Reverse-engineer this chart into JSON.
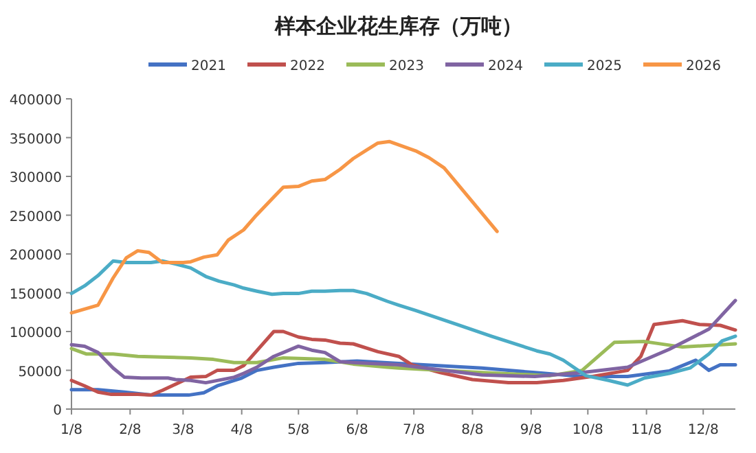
{
  "chart_data": {
    "type": "line",
    "title": "样本企业花生库存（万吨）",
    "legend": "top",
    "grid": false,
    "line_style": "solid",
    "marker": "none",
    "xlim": [
      "--01-08",
      "--12-25"
    ],
    "ylim": [
      0,
      400000
    ],
    "xticks": [
      {
        "value": "--01-08",
        "label": "1/8"
      },
      {
        "value": "--02-08",
        "label": "2/8"
      },
      {
        "value": "--03-08",
        "label": "3/8"
      },
      {
        "value": "--04-08",
        "label": "4/8"
      },
      {
        "value": "--05-08",
        "label": "5/8"
      },
      {
        "value": "--06-08",
        "label": "6/8"
      },
      {
        "value": "--07-08",
        "label": "7/8"
      },
      {
        "value": "--08-08",
        "label": "8/8"
      },
      {
        "value": "--09-08",
        "label": "9/8"
      },
      {
        "value": "--10-08",
        "label": "10/8"
      },
      {
        "value": "--11-08",
        "label": "11/8"
      },
      {
        "value": "--12-08",
        "label": "12/8"
      }
    ],
    "yticks": [
      0,
      50000,
      100000,
      150000,
      200000,
      250000,
      300000,
      350000,
      400000
    ],
    "series": [
      {
        "name": "2021",
        "color": "#4472c4",
        "x": [
          "--01-08",
          "--01-22",
          "--02-05",
          "--02-19",
          "--02-28",
          "--03-11",
          "--03-19",
          "--03-26",
          "--04-08",
          "--04-16",
          "--04-25",
          "--05-08",
          "--05-22",
          "--06-08",
          "--06-30",
          "--08-13",
          "--09-10",
          "--10-05",
          "--10-29",
          "--11-20",
          "--12-04",
          "--12-11",
          "--12-17",
          "--12-25"
        ],
        "values": [
          25000,
          25000,
          22000,
          18000,
          18000,
          18000,
          21000,
          30000,
          40000,
          50000,
          54000,
          59000,
          60000,
          62000,
          59000,
          53000,
          47000,
          42000,
          42000,
          49000,
          63000,
          50000,
          57000,
          57000
        ]
      },
      {
        "name": "2022",
        "color": "#c0504d",
        "x": [
          "--01-08",
          "--01-15",
          "--01-22",
          "--01-29",
          "--02-12",
          "--02-19",
          "--02-25",
          "--03-12",
          "--03-20",
          "--03-26",
          "--04-04",
          "--04-09",
          "--04-25",
          "--04-30",
          "--05-08",
          "--05-15",
          "--05-22",
          "--05-30",
          "--06-06",
          "--06-19",
          "--06-30",
          "--07-07",
          "--07-22",
          "--08-08",
          "--08-27",
          "--09-11",
          "--09-25",
          "--10-10",
          "--10-29",
          "--11-05",
          "--11-12",
          "--11-27",
          "--12-06",
          "--12-17",
          "--12-25"
        ],
        "values": [
          37000,
          30000,
          22000,
          19000,
          19000,
          18000,
          24000,
          41000,
          42000,
          50000,
          50000,
          56000,
          100000,
          100000,
          93000,
          90000,
          89000,
          85000,
          84000,
          74000,
          68000,
          57000,
          47000,
          38000,
          34000,
          34000,
          37000,
          42000,
          50000,
          68000,
          109000,
          114000,
          109000,
          108000,
          102000
        ]
      },
      {
        "name": "2023",
        "color": "#9bbb59",
        "x": [
          "--01-08",
          "--01-16",
          "--01-30",
          "--02-12",
          "--02-25",
          "--03-12",
          "--03-24",
          "--04-04",
          "--04-16",
          "--04-30",
          "--05-22",
          "--06-06",
          "--06-24",
          "--06-30",
          "--08-13",
          "--09-18",
          "--10-05",
          "--10-22",
          "--11-07",
          "--11-27",
          "--12-25"
        ],
        "values": [
          78000,
          71000,
          71000,
          68000,
          67000,
          66000,
          64000,
          60000,
          60000,
          66000,
          64000,
          58000,
          54000,
          53000,
          47000,
          43000,
          50000,
          86000,
          87000,
          80000,
          84000
        ]
      },
      {
        "name": "2024",
        "color": "#8064a2",
        "x": [
          "--01-08",
          "--01-15",
          "--01-22",
          "--01-30",
          "--02-05",
          "--02-14",
          "--02-28",
          "--03-04",
          "--03-12",
          "--03-20",
          "--04-04",
          "--04-09",
          "--04-16",
          "--04-25",
          "--04-30",
          "--05-08",
          "--05-15",
          "--05-22",
          "--05-30",
          "--06-06",
          "--06-30",
          "--08-13",
          "--09-10",
          "--10-05",
          "--10-29",
          "--11-20",
          "--12-11",
          "--12-25"
        ],
        "values": [
          83000,
          81000,
          73000,
          53000,
          41000,
          40000,
          40000,
          38000,
          37000,
          34000,
          41000,
          46000,
          54000,
          68000,
          73000,
          81000,
          76000,
          73000,
          61000,
          60000,
          57000,
          44000,
          42000,
          47000,
          54000,
          77000,
          103000,
          140000
        ]
      },
      {
        "name": "2025",
        "color": "#4bacc6",
        "x": [
          "--01-08",
          "--01-15",
          "--01-22",
          "--01-30",
          "--02-06",
          "--02-19",
          "--02-25",
          "--03-04",
          "--03-12",
          "--03-20",
          "--03-27",
          "--04-04",
          "--04-09",
          "--04-16",
          "--04-24",
          "--04-30",
          "--05-08",
          "--05-15",
          "--05-22",
          "--05-30",
          "--06-06",
          "--06-13",
          "--06-24",
          "--06-30",
          "--07-09",
          "--07-31",
          "--08-18",
          "--09-11",
          "--09-18",
          "--09-25",
          "--10-07",
          "--10-19",
          "--10-29",
          "--11-07",
          "--11-20",
          "--12-01",
          "--12-11",
          "--12-18",
          "--12-25"
        ],
        "values": [
          149000,
          159000,
          172000,
          191000,
          189000,
          189000,
          191000,
          187000,
          182000,
          171000,
          165000,
          160000,
          156000,
          152000,
          148000,
          149000,
          149000,
          152000,
          152000,
          153000,
          153000,
          149000,
          139000,
          134000,
          127000,
          109000,
          94000,
          75000,
          71000,
          63000,
          43000,
          37000,
          31000,
          40000,
          46000,
          53000,
          71000,
          88000,
          94000
        ]
      },
      {
        "name": "2026",
        "color": "#f79646",
        "x": [
          "--01-08",
          "--01-22",
          "--01-30",
          "--02-06",
          "--02-12",
          "--02-18",
          "--02-25",
          "--03-08",
          "--03-12",
          "--03-19",
          "--03-26",
          "--04-01",
          "--04-09",
          "--04-15",
          "--04-24",
          "--04-30",
          "--05-08",
          "--05-15",
          "--05-22",
          "--05-30",
          "--06-06",
          "--06-13",
          "--06-19",
          "--06-25",
          "--07-09",
          "--07-16",
          "--07-24",
          "--08-07",
          "--08-21"
        ],
        "values": [
          124000,
          134000,
          169000,
          195000,
          204000,
          202000,
          189000,
          189000,
          190000,
          196000,
          199000,
          218000,
          231000,
          248000,
          271000,
          286000,
          287000,
          294000,
          296000,
          309000,
          323000,
          334000,
          343000,
          345000,
          333000,
          324000,
          311000,
          270000,
          229000
        ]
      }
    ]
  }
}
